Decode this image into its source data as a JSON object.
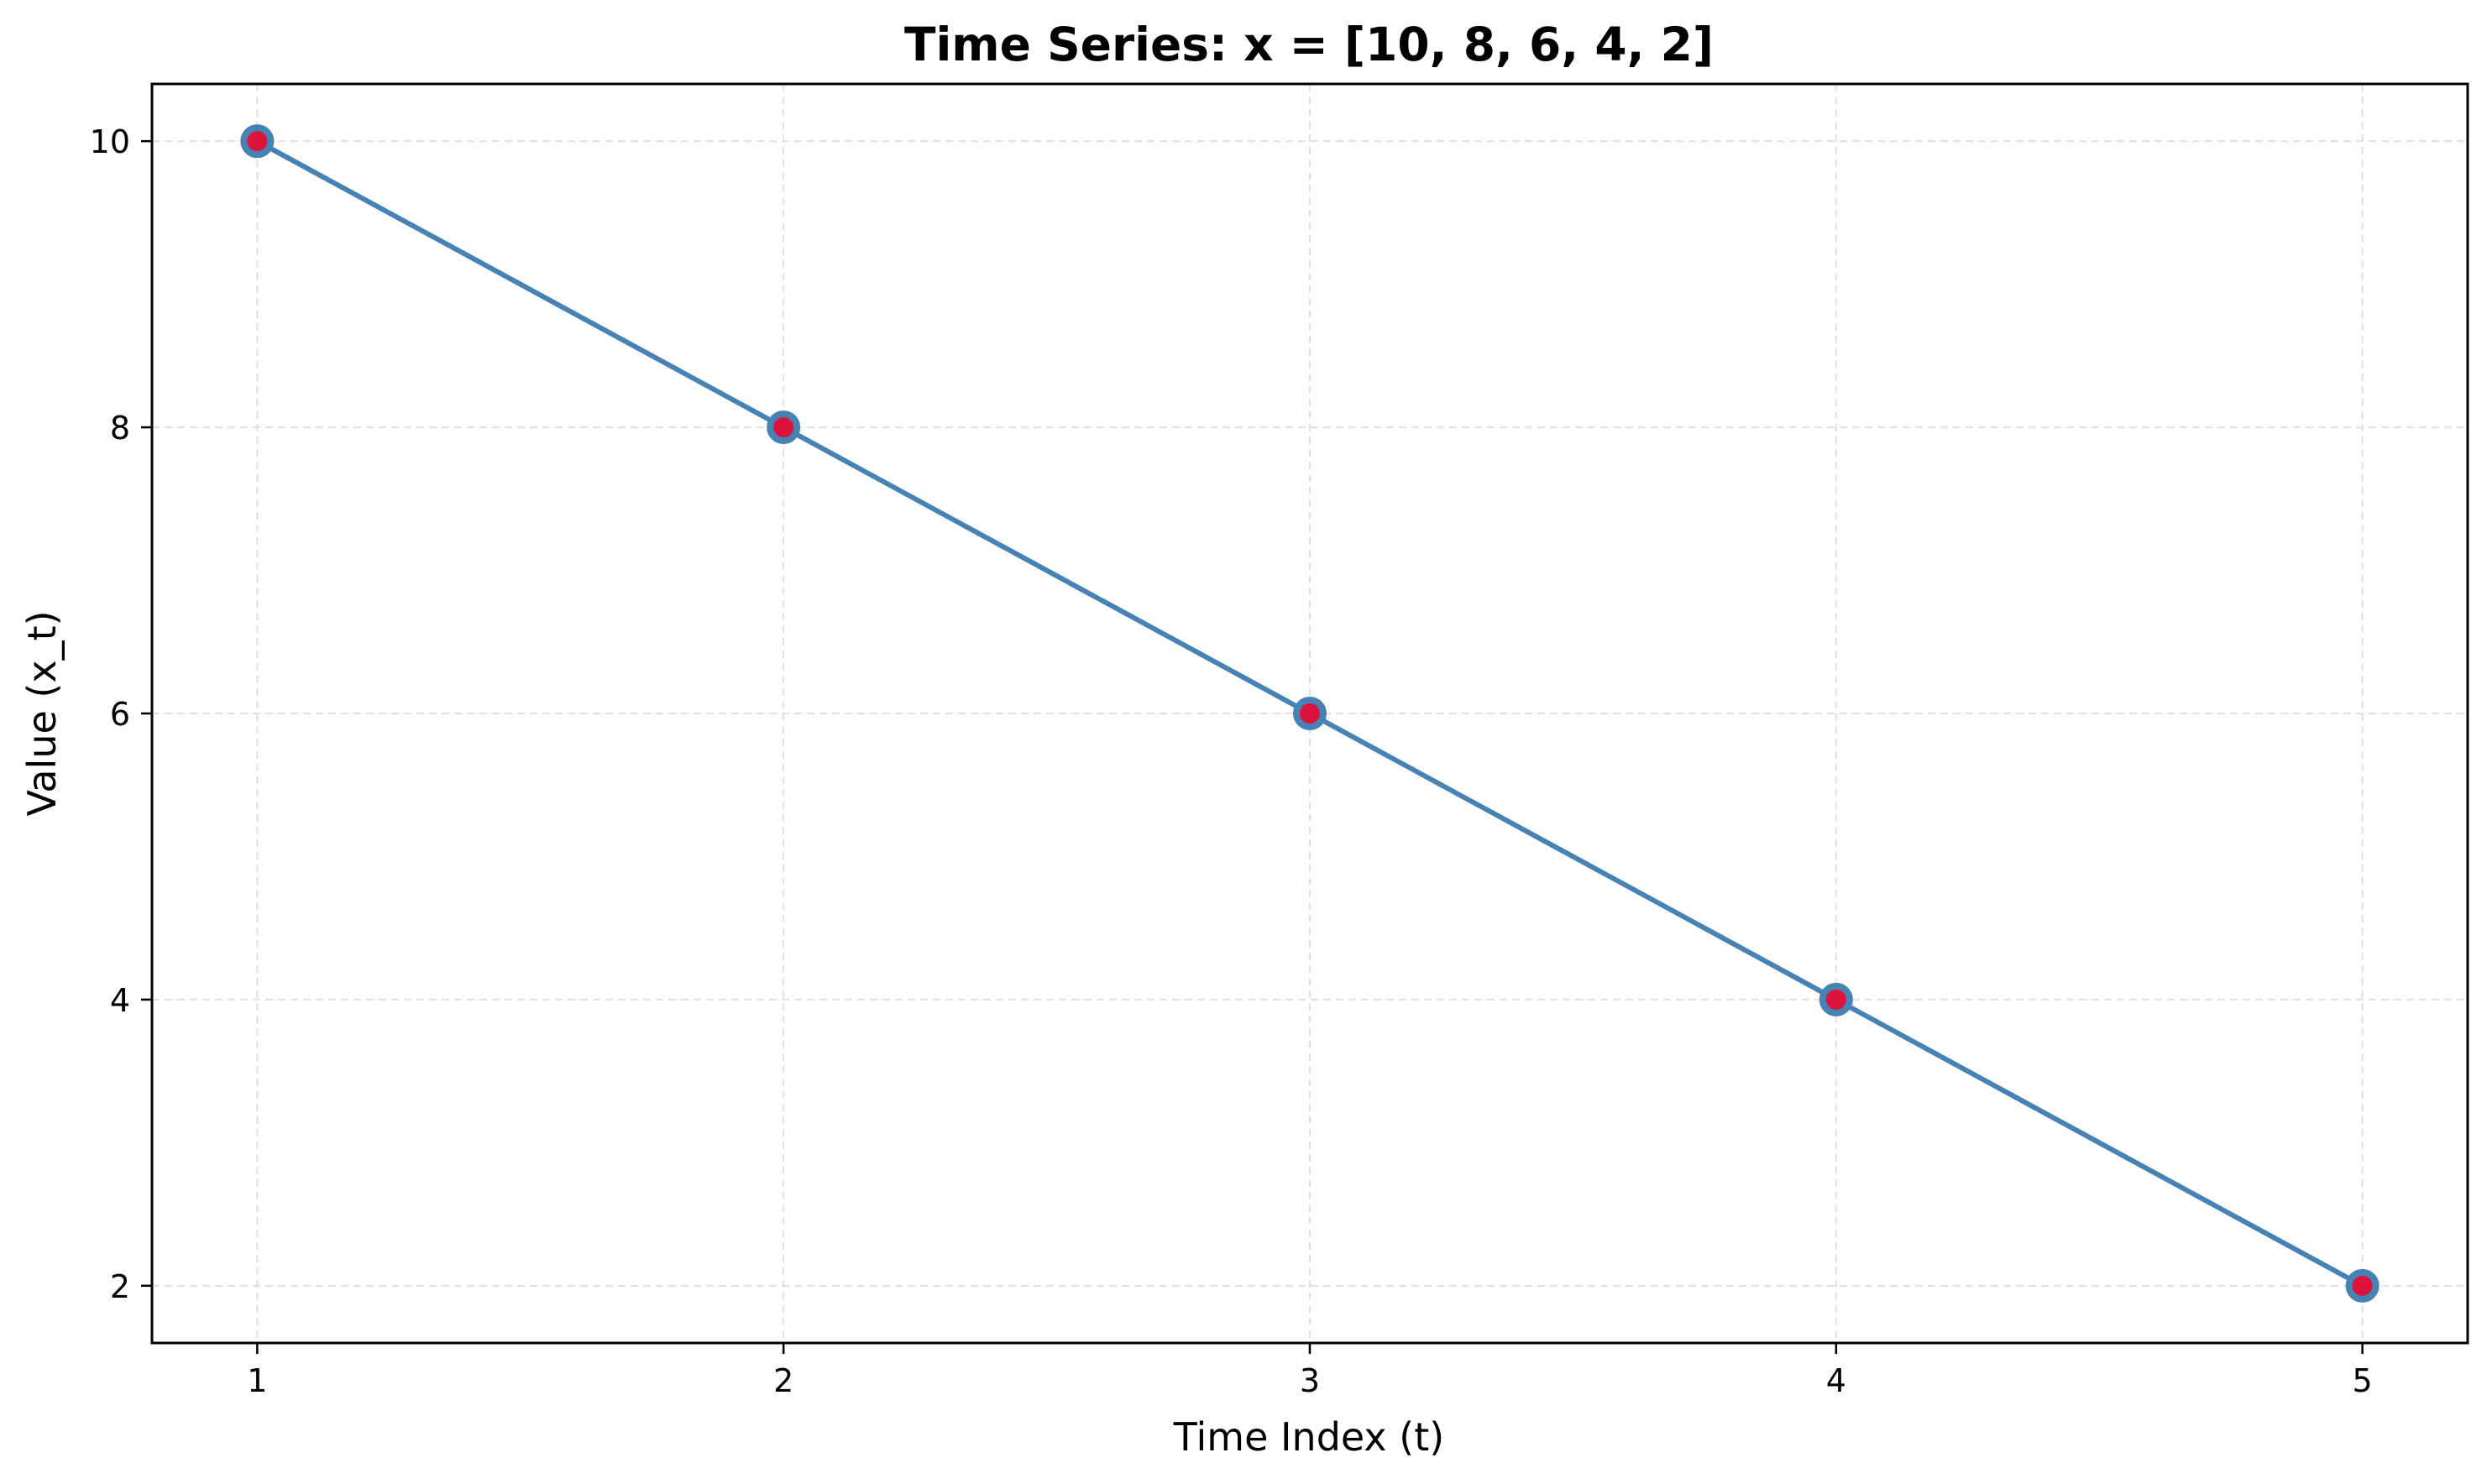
{
  "chart_data": {
    "type": "line",
    "title": "Time Series: x = [10, 8, 6, 4, 2]",
    "xlabel": "Time Index (t)",
    "ylabel": "Value (x_t)",
    "x": [
      1,
      2,
      3,
      4,
      5
    ],
    "series": [
      {
        "values": [
          10,
          8,
          6,
          4,
          2
        ],
        "line_color": "#4682B4",
        "marker": "circle",
        "marker_fill": "#DC143C",
        "marker_edge": "#4682B4"
      }
    ],
    "xticks": [
      "1",
      "2",
      "3",
      "4",
      "5"
    ],
    "yticks": [
      "2",
      "4",
      "6",
      "8",
      "10"
    ],
    "xlim": [
      0.8,
      5.2
    ],
    "ylim": [
      1.6,
      10.4
    ],
    "grid": true,
    "grid_style": "dashed",
    "grid_color": "#e0e0e0",
    "legend": "none"
  }
}
